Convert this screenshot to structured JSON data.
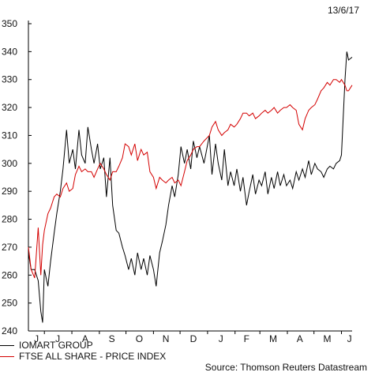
{
  "date_label": "13/6/17",
  "source": "Source: Thomson Reuters Datastream",
  "legend": [
    {
      "label": "IOMART GROUP",
      "color": "#000000"
    },
    {
      "label": "FTSE ALL SHARE - PRICE INDEX",
      "color": "#d40000"
    }
  ],
  "chart_data": {
    "type": "line",
    "ylim": [
      240,
      350
    ],
    "yticks": [
      240,
      250,
      260,
      270,
      280,
      290,
      300,
      310,
      320,
      330,
      340,
      350
    ],
    "xlabels": [
      "J",
      "J",
      "A",
      "S",
      "O",
      "N",
      "D",
      "J",
      "F",
      "M",
      "A",
      "M",
      "J"
    ],
    "x_range": [
      "2016-06-13",
      "2017-06-13"
    ],
    "grid": false,
    "series": [
      {
        "name": "IOMART GROUP",
        "color": "#000000",
        "points": [
          [
            "2016-06-13",
            268
          ],
          [
            "2016-06-16",
            262
          ],
          [
            "2016-06-20",
            262
          ],
          [
            "2016-06-24",
            258
          ],
          [
            "2016-06-27",
            247
          ],
          [
            "2016-06-29",
            243
          ],
          [
            "2016-07-01",
            262
          ],
          [
            "2016-07-05",
            256
          ],
          [
            "2016-07-08",
            265
          ],
          [
            "2016-07-12",
            275
          ],
          [
            "2016-07-15",
            282
          ],
          [
            "2016-07-19",
            290
          ],
          [
            "2016-07-22",
            298
          ],
          [
            "2016-07-26",
            312
          ],
          [
            "2016-07-29",
            300
          ],
          [
            "2016-08-02",
            305
          ],
          [
            "2016-08-05",
            298
          ],
          [
            "2016-08-09",
            312
          ],
          [
            "2016-08-12",
            303
          ],
          [
            "2016-08-16",
            300
          ],
          [
            "2016-08-19",
            313
          ],
          [
            "2016-08-23",
            305
          ],
          [
            "2016-08-26",
            300
          ],
          [
            "2016-08-30",
            307
          ],
          [
            "2016-09-02",
            298
          ],
          [
            "2016-09-06",
            302
          ],
          [
            "2016-09-09",
            288
          ],
          [
            "2016-09-13",
            302
          ],
          [
            "2016-09-16",
            285
          ],
          [
            "2016-09-20",
            276
          ],
          [
            "2016-09-23",
            275
          ],
          [
            "2016-09-27",
            270
          ],
          [
            "2016-09-30",
            267
          ],
          [
            "2016-10-04",
            262
          ],
          [
            "2016-10-07",
            266
          ],
          [
            "2016-10-11",
            260
          ],
          [
            "2016-10-14",
            268
          ],
          [
            "2016-10-18",
            262
          ],
          [
            "2016-10-21",
            266
          ],
          [
            "2016-10-25",
            260
          ],
          [
            "2016-10-28",
            267
          ],
          [
            "2016-11-01",
            262
          ],
          [
            "2016-11-04",
            256
          ],
          [
            "2016-11-08",
            268
          ],
          [
            "2016-11-11",
            272
          ],
          [
            "2016-11-15",
            278
          ],
          [
            "2016-11-18",
            285
          ],
          [
            "2016-11-22",
            292
          ],
          [
            "2016-11-25",
            288
          ],
          [
            "2016-11-29",
            296
          ],
          [
            "2016-12-02",
            306
          ],
          [
            "2016-12-06",
            300
          ],
          [
            "2016-12-09",
            305
          ],
          [
            "2016-12-13",
            298
          ],
          [
            "2016-12-16",
            308
          ],
          [
            "2016-12-20",
            302
          ],
          [
            "2016-12-23",
            306
          ],
          [
            "2016-12-28",
            300
          ],
          [
            "2017-01-03",
            310
          ],
          [
            "2017-01-06",
            296
          ],
          [
            "2017-01-10",
            307
          ],
          [
            "2017-01-13",
            300
          ],
          [
            "2017-01-17",
            294
          ],
          [
            "2017-01-20",
            305
          ],
          [
            "2017-01-24",
            292
          ],
          [
            "2017-01-27",
            297
          ],
          [
            "2017-01-31",
            292
          ],
          [
            "2017-02-03",
            298
          ],
          [
            "2017-02-07",
            290
          ],
          [
            "2017-02-10",
            295
          ],
          [
            "2017-02-14",
            285
          ],
          [
            "2017-02-17",
            290
          ],
          [
            "2017-02-21",
            296
          ],
          [
            "2017-02-24",
            289
          ],
          [
            "2017-02-28",
            294
          ],
          [
            "2017-03-03",
            292
          ],
          [
            "2017-03-07",
            297
          ],
          [
            "2017-03-10",
            289
          ],
          [
            "2017-03-14",
            295
          ],
          [
            "2017-03-17",
            291
          ],
          [
            "2017-03-21",
            297
          ],
          [
            "2017-03-24",
            292
          ],
          [
            "2017-03-28",
            296
          ],
          [
            "2017-03-31",
            292
          ],
          [
            "2017-04-04",
            294
          ],
          [
            "2017-04-07",
            291
          ],
          [
            "2017-04-11",
            297
          ],
          [
            "2017-04-14",
            294
          ],
          [
            "2017-04-18",
            298
          ],
          [
            "2017-04-21",
            295
          ],
          [
            "2017-04-25",
            301
          ],
          [
            "2017-04-28",
            296
          ],
          [
            "2017-05-02",
            300
          ],
          [
            "2017-05-05",
            298
          ],
          [
            "2017-05-09",
            297
          ],
          [
            "2017-05-12",
            295
          ],
          [
            "2017-05-16",
            298
          ],
          [
            "2017-05-19",
            299
          ],
          [
            "2017-05-23",
            298
          ],
          [
            "2017-05-26",
            300
          ],
          [
            "2017-05-30",
            301
          ],
          [
            "2017-06-01",
            303
          ],
          [
            "2017-06-05",
            330
          ],
          [
            "2017-06-07",
            340
          ],
          [
            "2017-06-09",
            337
          ],
          [
            "2017-06-13",
            338
          ]
        ]
      },
      {
        "name": "FTSE ALL SHARE - PRICE INDEX",
        "color": "#d40000",
        "points": [
          [
            "2016-06-13",
            270
          ],
          [
            "2016-06-16",
            262
          ],
          [
            "2016-06-20",
            259
          ],
          [
            "2016-06-24",
            277
          ],
          [
            "2016-06-27",
            260
          ],
          [
            "2016-06-29",
            271
          ],
          [
            "2016-07-01",
            276
          ],
          [
            "2016-07-05",
            282
          ],
          [
            "2016-07-08",
            284
          ],
          [
            "2016-07-12",
            288
          ],
          [
            "2016-07-15",
            289
          ],
          [
            "2016-07-19",
            288
          ],
          [
            "2016-07-22",
            291
          ],
          [
            "2016-07-26",
            293
          ],
          [
            "2016-07-29",
            290
          ],
          [
            "2016-08-02",
            291
          ],
          [
            "2016-08-05",
            296
          ],
          [
            "2016-08-09",
            299
          ],
          [
            "2016-08-12",
            297
          ],
          [
            "2016-08-16",
            298
          ],
          [
            "2016-08-19",
            297
          ],
          [
            "2016-08-23",
            297
          ],
          [
            "2016-08-26",
            295
          ],
          [
            "2016-08-30",
            298
          ],
          [
            "2016-09-02",
            300
          ],
          [
            "2016-09-06",
            298
          ],
          [
            "2016-09-09",
            296
          ],
          [
            "2016-09-13",
            294
          ],
          [
            "2016-09-16",
            297
          ],
          [
            "2016-09-20",
            297
          ],
          [
            "2016-09-23",
            299
          ],
          [
            "2016-09-27",
            302
          ],
          [
            "2016-09-30",
            307
          ],
          [
            "2016-10-04",
            306
          ],
          [
            "2016-10-07",
            303
          ],
          [
            "2016-10-11",
            307
          ],
          [
            "2016-10-14",
            301
          ],
          [
            "2016-10-18",
            305
          ],
          [
            "2016-10-21",
            303
          ],
          [
            "2016-10-25",
            304
          ],
          [
            "2016-10-28",
            297
          ],
          [
            "2016-11-01",
            295
          ],
          [
            "2016-11-04",
            291
          ],
          [
            "2016-11-08",
            295
          ],
          [
            "2016-11-11",
            294
          ],
          [
            "2016-11-15",
            293
          ],
          [
            "2016-11-18",
            294
          ],
          [
            "2016-11-22",
            295
          ],
          [
            "2016-11-25",
            293
          ],
          [
            "2016-11-29",
            294
          ],
          [
            "2016-12-02",
            292
          ],
          [
            "2016-12-06",
            297
          ],
          [
            "2016-12-09",
            301
          ],
          [
            "2016-12-13",
            303
          ],
          [
            "2016-12-16",
            305
          ],
          [
            "2016-12-20",
            306
          ],
          [
            "2016-12-23",
            306
          ],
          [
            "2016-12-28",
            308
          ],
          [
            "2017-01-03",
            310
          ],
          [
            "2017-01-06",
            313
          ],
          [
            "2017-01-10",
            315
          ],
          [
            "2017-01-13",
            312
          ],
          [
            "2017-01-17",
            310
          ],
          [
            "2017-01-20",
            311
          ],
          [
            "2017-01-24",
            312
          ],
          [
            "2017-01-27",
            314
          ],
          [
            "2017-01-31",
            313
          ],
          [
            "2017-02-03",
            314
          ],
          [
            "2017-02-07",
            316
          ],
          [
            "2017-02-10",
            318
          ],
          [
            "2017-02-14",
            318
          ],
          [
            "2017-02-17",
            317
          ],
          [
            "2017-02-21",
            318
          ],
          [
            "2017-02-24",
            316
          ],
          [
            "2017-02-28",
            317
          ],
          [
            "2017-03-03",
            318
          ],
          [
            "2017-03-07",
            319
          ],
          [
            "2017-03-10",
            318
          ],
          [
            "2017-03-14",
            319
          ],
          [
            "2017-03-17",
            320
          ],
          [
            "2017-03-21",
            318
          ],
          [
            "2017-03-24",
            319
          ],
          [
            "2017-03-28",
            320
          ],
          [
            "2017-03-31",
            320
          ],
          [
            "2017-04-04",
            321
          ],
          [
            "2017-04-07",
            320
          ],
          [
            "2017-04-11",
            319
          ],
          [
            "2017-04-14",
            314
          ],
          [
            "2017-04-18",
            312
          ],
          [
            "2017-04-21",
            316
          ],
          [
            "2017-04-25",
            319
          ],
          [
            "2017-04-28",
            320
          ],
          [
            "2017-05-02",
            321
          ],
          [
            "2017-05-05",
            323
          ],
          [
            "2017-05-09",
            326
          ],
          [
            "2017-05-12",
            327
          ],
          [
            "2017-05-16",
            329
          ],
          [
            "2017-05-19",
            328
          ],
          [
            "2017-05-23",
            330
          ],
          [
            "2017-05-26",
            330
          ],
          [
            "2017-05-30",
            329
          ],
          [
            "2017-06-01",
            330
          ],
          [
            "2017-06-05",
            328
          ],
          [
            "2017-06-07",
            326
          ],
          [
            "2017-06-09",
            326
          ],
          [
            "2017-06-13",
            328
          ]
        ]
      }
    ]
  }
}
